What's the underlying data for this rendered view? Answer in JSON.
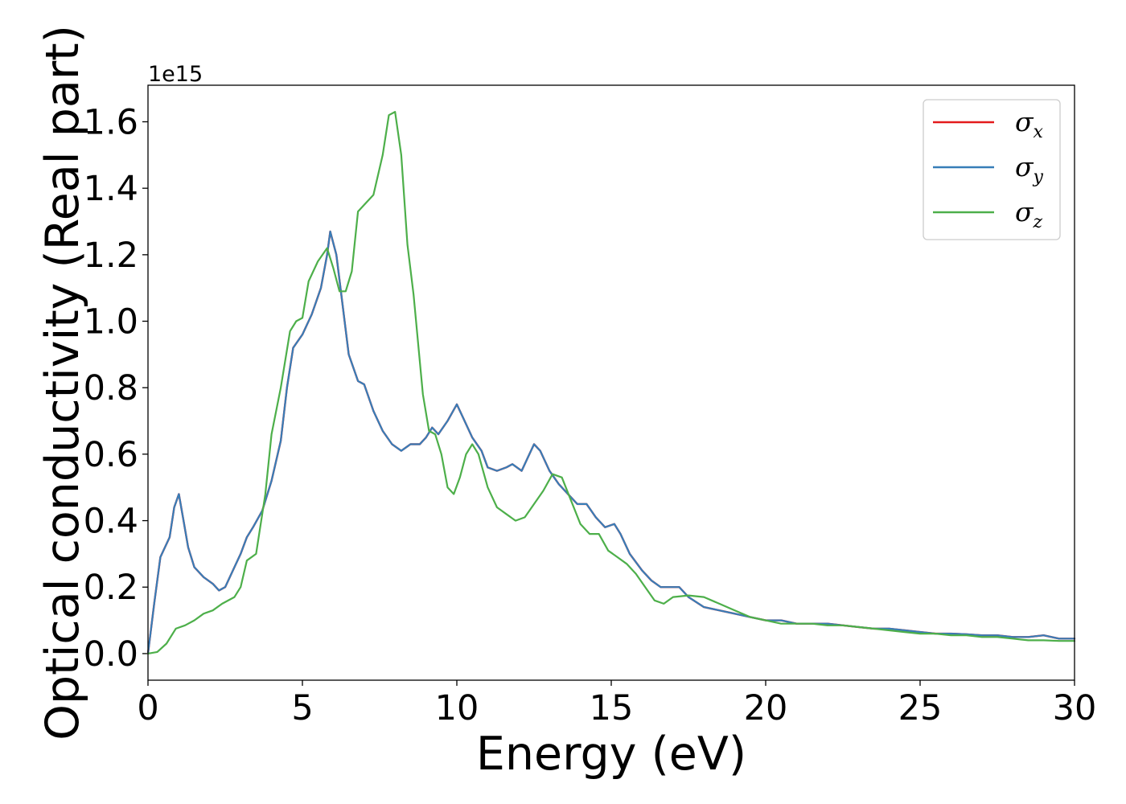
{
  "chart_data": {
    "type": "line",
    "xlabel": "Energy (eV)",
    "ylabel": "Optical conductivity (Real part)",
    "y_offset_text": "1e15",
    "y_scale_factor": 1000000000000000.0,
    "xlim": [
      0,
      30
    ],
    "ylim": [
      -0.08,
      1.71
    ],
    "x_ticks": [
      0,
      5,
      10,
      15,
      20,
      25,
      30
    ],
    "x_tick_labels": [
      "0",
      "5",
      "10",
      "15",
      "20",
      "25",
      "30"
    ],
    "y_ticks": [
      0.0,
      0.2,
      0.4,
      0.6,
      0.8,
      1.0,
      1.2,
      1.4,
      1.6
    ],
    "y_tick_labels": [
      "0.0",
      "0.2",
      "0.4",
      "0.6",
      "0.8",
      "1.0",
      "1.2",
      "1.4",
      "1.6"
    ],
    "grid": false,
    "legend_position": "top-right",
    "series": [
      {
        "name": "σx",
        "legend_symbol": "σ",
        "legend_subscript": "x",
        "color": "#e41a1c",
        "x": [
          0,
          0.2,
          0.4,
          0.5,
          0.7,
          0.85,
          1.0,
          1.15,
          1.3,
          1.5,
          1.8,
          2.1,
          2.3,
          2.5,
          2.8,
          3.0,
          3.2,
          3.4,
          3.7,
          4.0,
          4.3,
          4.5,
          4.7,
          5.0,
          5.3,
          5.6,
          5.8,
          5.9,
          6.1,
          6.3,
          6.5,
          6.8,
          7.0,
          7.3,
          7.6,
          7.9,
          8.2,
          8.5,
          8.8,
          9.0,
          9.2,
          9.4,
          9.7,
          10.0,
          10.2,
          10.5,
          10.8,
          11.0,
          11.3,
          11.6,
          11.8,
          12.1,
          12.3,
          12.5,
          12.7,
          13.0,
          13.3,
          13.6,
          13.9,
          14.2,
          14.5,
          14.8,
          15.1,
          15.3,
          15.6,
          16.0,
          16.3,
          16.6,
          16.9,
          17.2,
          17.5,
          18.0,
          18.5,
          19.0,
          19.5,
          20.0,
          20.5,
          21.0,
          21.5,
          22.0,
          22.5,
          23.0,
          23.5,
          24.0,
          24.5,
          25.0,
          25.5,
          26.0,
          26.5,
          27.0,
          27.5,
          28.0,
          28.5,
          29.0,
          29.5,
          30.0
        ],
        "y": [
          0.0,
          0.15,
          0.29,
          0.31,
          0.35,
          0.44,
          0.48,
          0.4,
          0.32,
          0.26,
          0.23,
          0.21,
          0.19,
          0.2,
          0.26,
          0.3,
          0.35,
          0.38,
          0.43,
          0.52,
          0.64,
          0.8,
          0.92,
          0.96,
          1.02,
          1.1,
          1.2,
          1.27,
          1.2,
          1.05,
          0.9,
          0.82,
          0.81,
          0.73,
          0.67,
          0.63,
          0.61,
          0.63,
          0.63,
          0.65,
          0.68,
          0.66,
          0.7,
          0.75,
          0.71,
          0.65,
          0.61,
          0.56,
          0.55,
          0.56,
          0.57,
          0.55,
          0.59,
          0.63,
          0.61,
          0.55,
          0.51,
          0.48,
          0.45,
          0.45,
          0.41,
          0.38,
          0.39,
          0.36,
          0.3,
          0.25,
          0.22,
          0.2,
          0.2,
          0.2,
          0.17,
          0.14,
          0.13,
          0.12,
          0.11,
          0.1,
          0.1,
          0.09,
          0.09,
          0.09,
          0.085,
          0.08,
          0.075,
          0.075,
          0.07,
          0.065,
          0.06,
          0.06,
          0.058,
          0.055,
          0.055,
          0.05,
          0.05,
          0.055,
          0.045,
          0.045
        ]
      },
      {
        "name": "σy",
        "legend_symbol": "σ",
        "legend_subscript": "y",
        "color": "#377eb8",
        "x": [
          0,
          0.2,
          0.4,
          0.5,
          0.7,
          0.85,
          1.0,
          1.15,
          1.3,
          1.5,
          1.8,
          2.1,
          2.3,
          2.5,
          2.8,
          3.0,
          3.2,
          3.4,
          3.7,
          4.0,
          4.3,
          4.5,
          4.7,
          5.0,
          5.3,
          5.6,
          5.8,
          5.9,
          6.1,
          6.3,
          6.5,
          6.8,
          7.0,
          7.3,
          7.6,
          7.9,
          8.2,
          8.5,
          8.8,
          9.0,
          9.2,
          9.4,
          9.7,
          10.0,
          10.2,
          10.5,
          10.8,
          11.0,
          11.3,
          11.6,
          11.8,
          12.1,
          12.3,
          12.5,
          12.7,
          13.0,
          13.3,
          13.6,
          13.9,
          14.2,
          14.5,
          14.8,
          15.1,
          15.3,
          15.6,
          16.0,
          16.3,
          16.6,
          16.9,
          17.2,
          17.5,
          18.0,
          18.5,
          19.0,
          19.5,
          20.0,
          20.5,
          21.0,
          21.5,
          22.0,
          22.5,
          23.0,
          23.5,
          24.0,
          24.5,
          25.0,
          25.5,
          26.0,
          26.5,
          27.0,
          27.5,
          28.0,
          28.5,
          29.0,
          29.5,
          30.0
        ],
        "y": [
          0.0,
          0.15,
          0.29,
          0.31,
          0.35,
          0.44,
          0.48,
          0.4,
          0.32,
          0.26,
          0.23,
          0.21,
          0.19,
          0.2,
          0.26,
          0.3,
          0.35,
          0.38,
          0.43,
          0.52,
          0.64,
          0.8,
          0.92,
          0.96,
          1.02,
          1.1,
          1.2,
          1.27,
          1.2,
          1.05,
          0.9,
          0.82,
          0.81,
          0.73,
          0.67,
          0.63,
          0.61,
          0.63,
          0.63,
          0.65,
          0.68,
          0.66,
          0.7,
          0.75,
          0.71,
          0.65,
          0.61,
          0.56,
          0.55,
          0.56,
          0.57,
          0.55,
          0.59,
          0.63,
          0.61,
          0.55,
          0.51,
          0.48,
          0.45,
          0.45,
          0.41,
          0.38,
          0.39,
          0.36,
          0.3,
          0.25,
          0.22,
          0.2,
          0.2,
          0.2,
          0.17,
          0.14,
          0.13,
          0.12,
          0.11,
          0.1,
          0.1,
          0.09,
          0.09,
          0.09,
          0.085,
          0.08,
          0.075,
          0.075,
          0.07,
          0.065,
          0.06,
          0.06,
          0.058,
          0.055,
          0.055,
          0.05,
          0.05,
          0.055,
          0.045,
          0.045
        ]
      },
      {
        "name": "σz",
        "legend_symbol": "σ",
        "legend_subscript": "z",
        "color": "#4daf4a",
        "x": [
          0,
          0.3,
          0.6,
          0.9,
          1.2,
          1.5,
          1.8,
          2.1,
          2.4,
          2.8,
          3.0,
          3.2,
          3.5,
          3.8,
          4.0,
          4.3,
          4.6,
          4.8,
          5.0,
          5.2,
          5.5,
          5.8,
          6.0,
          6.2,
          6.4,
          6.6,
          6.8,
          7.0,
          7.3,
          7.6,
          7.8,
          8.0,
          8.2,
          8.4,
          8.6,
          8.9,
          9.1,
          9.3,
          9.5,
          9.7,
          9.9,
          10.1,
          10.3,
          10.5,
          10.7,
          11.0,
          11.3,
          11.6,
          11.9,
          12.2,
          12.5,
          12.8,
          13.1,
          13.4,
          13.7,
          14.0,
          14.3,
          14.6,
          14.9,
          15.2,
          15.5,
          15.8,
          16.1,
          16.4,
          16.7,
          17.0,
          17.5,
          18.0,
          18.5,
          19.0,
          19.5,
          20.0,
          20.5,
          21.0,
          21.5,
          22.0,
          22.5,
          23.0,
          23.5,
          24.0,
          24.5,
          25.0,
          25.5,
          26.0,
          26.5,
          27.0,
          27.5,
          28.0,
          28.5,
          29.0,
          29.5,
          30.0
        ],
        "y": [
          0.0,
          0.005,
          0.03,
          0.075,
          0.085,
          0.1,
          0.12,
          0.13,
          0.15,
          0.17,
          0.2,
          0.28,
          0.3,
          0.48,
          0.66,
          0.8,
          0.97,
          1.0,
          1.01,
          1.12,
          1.18,
          1.22,
          1.16,
          1.09,
          1.09,
          1.15,
          1.33,
          1.35,
          1.38,
          1.5,
          1.62,
          1.63,
          1.5,
          1.23,
          1.08,
          0.78,
          0.67,
          0.66,
          0.6,
          0.5,
          0.48,
          0.53,
          0.6,
          0.63,
          0.6,
          0.5,
          0.44,
          0.42,
          0.4,
          0.41,
          0.45,
          0.49,
          0.54,
          0.53,
          0.46,
          0.39,
          0.36,
          0.36,
          0.31,
          0.29,
          0.27,
          0.24,
          0.2,
          0.16,
          0.15,
          0.17,
          0.175,
          0.17,
          0.15,
          0.13,
          0.11,
          0.1,
          0.09,
          0.09,
          0.09,
          0.085,
          0.085,
          0.08,
          0.075,
          0.07,
          0.065,
          0.06,
          0.06,
          0.055,
          0.055,
          0.05,
          0.05,
          0.045,
          0.04,
          0.04,
          0.038,
          0.038
        ]
      }
    ]
  }
}
